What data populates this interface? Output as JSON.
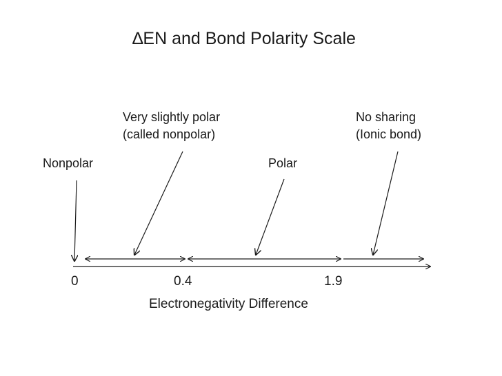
{
  "title": "∆EN and Bond Polarity Scale",
  "labels": {
    "very_slightly_polar_line1": "Very slightly polar",
    "very_slightly_polar_line2": "(called nonpolar)",
    "no_sharing_line1": "No sharing",
    "no_sharing_line2": "(Ionic bond)",
    "nonpolar": "Nonpolar",
    "polar": "Polar"
  },
  "scale": {
    "ticks": [
      "0",
      "0.4",
      "1.9"
    ],
    "axis_label": "Electronegativity Difference"
  },
  "colors": {
    "text": "#1a1a1a",
    "lines": "#1a1a1a"
  }
}
